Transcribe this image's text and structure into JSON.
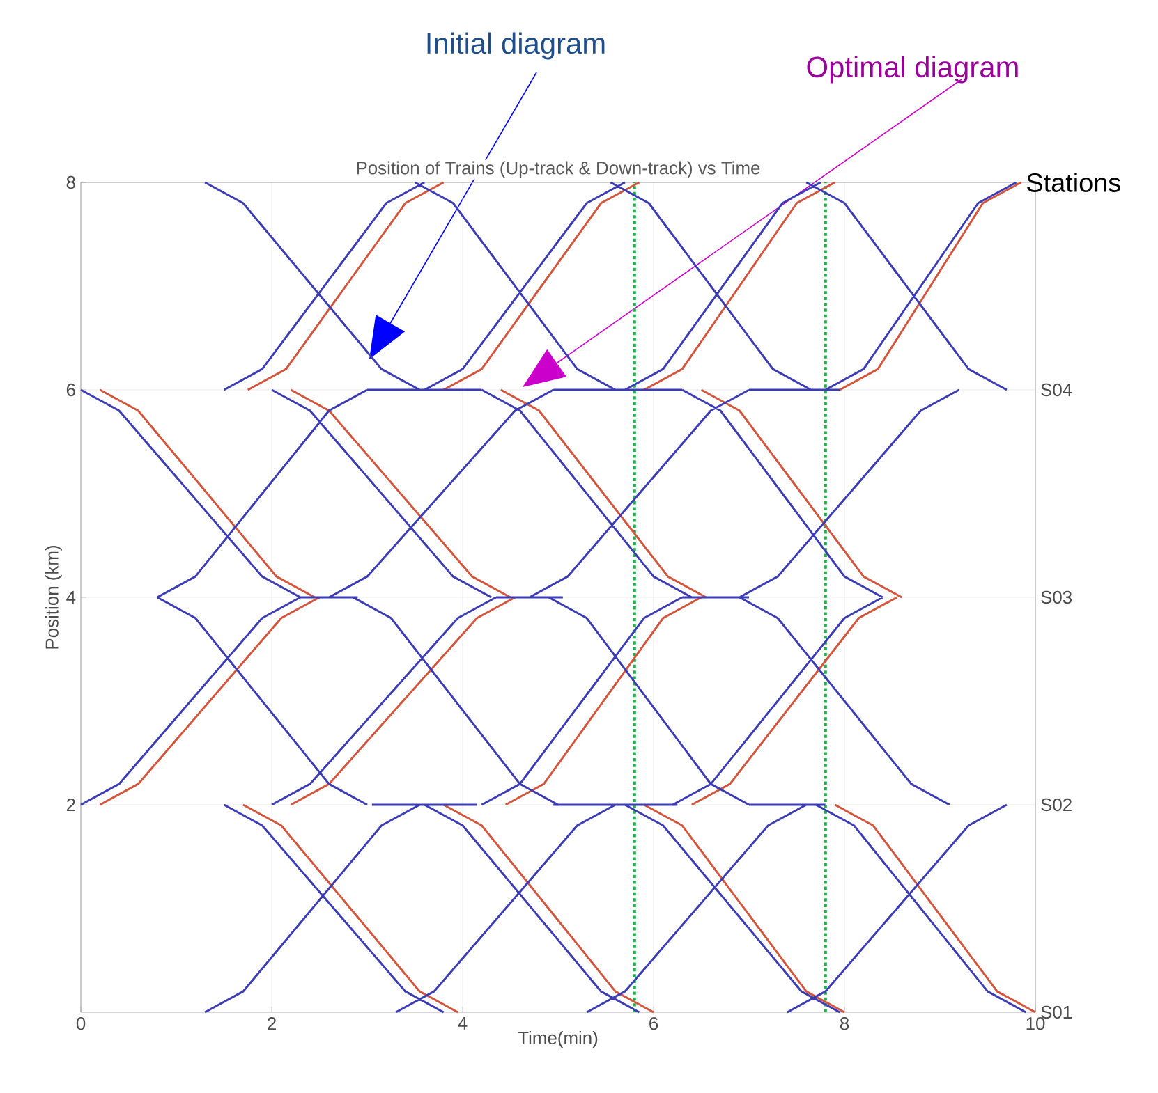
{
  "chart_data": {
    "type": "line",
    "title": "Position of Trains (Up-track & Down-track) vs Time",
    "xlabel": "Time(min)",
    "ylabel": "Position (km)",
    "annotations": [
      "Stations",
      "S01",
      "S02",
      "S03",
      "S04"
    ],
    "xlim": [
      0,
      10
    ],
    "ylim": [
      0,
      8
    ],
    "xticks": [
      0,
      2,
      4,
      6,
      8,
      10
    ],
    "yticks": [
      2,
      4,
      6,
      8
    ],
    "grid": true,
    "marker": "none",
    "line_style": "solid",
    "ref_lines": [
      {
        "axis": "x",
        "value": 5.8,
        "color": "#22b04a",
        "line_style": "dotted"
      },
      {
        "axis": "x",
        "value": 7.8,
        "color": "#22b04a",
        "line_style": "dotted"
      }
    ],
    "series": [
      {
        "name": "Initial diagram",
        "color": "#3c3cb4",
        "x": [
          1.3,
          1.7,
          3.15,
          3.55,
          null,
          3.5,
          3.9,
          5.2,
          5.6,
          null,
          5.55,
          5.95,
          7.25,
          7.65,
          null,
          7.6,
          8.0,
          9.3,
          9.7,
          null,
          1.5,
          1.9,
          3.2,
          3.6,
          null,
          3.6,
          4.0,
          5.3,
          5.7,
          null,
          5.7,
          6.1,
          7.35,
          7.75,
          null,
          7.8,
          8.2,
          9.4,
          9.8,
          null,
          0,
          0.4,
          1.9,
          2.3,
          null,
          2.0,
          2.4,
          3.9,
          4.3,
          null,
          4.2,
          4.6,
          6.0,
          6.4,
          null,
          6.3,
          6.7,
          8.0,
          8.4,
          null,
          0.8,
          1.2,
          2.6,
          3.0,
          null,
          2.6,
          3.0,
          4.55,
          4.95,
          null,
          4.7,
          5.1,
          6.6,
          7.0,
          null,
          6.9,
          7.3,
          8.8,
          9.2,
          null,
          0.8,
          1.2,
          2.6,
          3.0,
          null,
          2.85,
          3.25,
          4.6,
          5.0,
          null,
          4.9,
          5.3,
          6.6,
          7.0,
          null,
          6.9,
          7.3,
          8.7,
          9.1,
          null,
          0,
          0.4,
          1.9,
          2.3,
          null,
          2.0,
          2.4,
          3.95,
          4.35,
          null,
          4.2,
          4.6,
          5.9,
          6.3,
          null,
          6.2,
          6.6,
          8.0,
          8.4,
          null,
          1.5,
          1.9,
          3.4,
          3.8,
          null,
          3.6,
          4.0,
          5.45,
          5.85,
          null,
          5.7,
          6.1,
          7.55,
          7.95,
          null,
          7.7,
          8.1,
          9.5,
          9.9,
          null,
          1.3,
          1.7,
          3.15,
          3.55,
          null,
          3.3,
          3.7,
          5.2,
          5.6,
          null,
          5.3,
          5.7,
          7.2,
          7.6,
          null,
          7.4,
          7.8,
          9.3,
          9.7,
          null,
          3.0,
          4.2,
          null,
          4.95,
          6.3,
          null,
          7.0,
          7.95,
          null,
          2.3,
          2.9,
          null,
          4.35,
          5.05,
          null,
          6.3,
          7.0,
          null,
          3.05,
          4.15,
          null,
          4.95,
          6.25,
          null,
          7.0,
          7.8
        ],
        "values": [
          8,
          7.8,
          6.2,
          6,
          null,
          8,
          7.8,
          6.2,
          6,
          null,
          8,
          7.8,
          6.2,
          6,
          null,
          8,
          7.8,
          6.2,
          6,
          null,
          6,
          6.2,
          7.8,
          8,
          null,
          6,
          6.2,
          7.8,
          8,
          null,
          6,
          6.2,
          7.8,
          8,
          null,
          6,
          6.2,
          7.8,
          8,
          null,
          6,
          5.8,
          4.2,
          4,
          null,
          6,
          5.8,
          4.2,
          4,
          null,
          6,
          5.8,
          4.2,
          4,
          null,
          6,
          5.8,
          4.2,
          4,
          null,
          4,
          4.2,
          5.8,
          6,
          null,
          4,
          4.2,
          5.8,
          6,
          null,
          4,
          4.2,
          5.8,
          6,
          null,
          4,
          4.2,
          5.8,
          6,
          null,
          4,
          3.8,
          2.2,
          2,
          null,
          4,
          3.8,
          2.2,
          2,
          null,
          4,
          3.8,
          2.2,
          2,
          null,
          4,
          3.8,
          2.2,
          2,
          null,
          2,
          2.2,
          3.8,
          4,
          null,
          2,
          2.2,
          3.8,
          4,
          null,
          2,
          2.2,
          3.8,
          4,
          null,
          2,
          2.2,
          3.8,
          4,
          null,
          2,
          1.8,
          0.2,
          0,
          null,
          2,
          1.8,
          0.2,
          0,
          null,
          2,
          1.8,
          0.2,
          0,
          null,
          2,
          1.8,
          0.2,
          0,
          null,
          0,
          0.2,
          1.8,
          2,
          null,
          0,
          0.2,
          1.8,
          2,
          null,
          0,
          0.2,
          1.8,
          2,
          null,
          0,
          0.2,
          1.8,
          2,
          null,
          6,
          6,
          null,
          6,
          6,
          null,
          6,
          6,
          null,
          4,
          4,
          null,
          4,
          4,
          null,
          4,
          4,
          null,
          2,
          2,
          null,
          2,
          2,
          null,
          2,
          2
        ]
      },
      {
        "name": "Optimal diagram",
        "color": "#d2553c",
        "x": [
          1.75,
          2.15,
          3.4,
          3.8,
          null,
          3.8,
          4.2,
          5.45,
          5.85,
          null,
          5.9,
          6.3,
          7.5,
          7.9,
          null,
          7.95,
          8.35,
          9.45,
          9.85,
          null,
          0.2,
          0.6,
          2.05,
          2.45,
          null,
          2.2,
          2.6,
          4.1,
          4.5,
          null,
          4.4,
          4.8,
          6.15,
          6.55,
          null,
          6.5,
          6.9,
          8.2,
          8.6,
          null,
          0.2,
          0.6,
          2.1,
          2.5,
          null,
          2.2,
          2.6,
          4.15,
          4.55,
          null,
          4.45,
          4.85,
          6.1,
          6.5,
          null,
          6.4,
          6.8,
          8.15,
          8.55,
          null,
          1.7,
          2.1,
          3.55,
          3.95,
          null,
          3.8,
          4.2,
          5.6,
          6.0,
          null,
          5.9,
          6.3,
          7.6,
          8.0,
          null,
          7.9,
          8.3,
          9.6,
          10.0
        ],
        "values": [
          6,
          6.2,
          7.8,
          8,
          null,
          6,
          6.2,
          7.8,
          8,
          null,
          6,
          6.2,
          7.8,
          8,
          null,
          6,
          6.2,
          7.8,
          8,
          null,
          6,
          5.8,
          4.2,
          4,
          null,
          6,
          5.8,
          4.2,
          4,
          null,
          6,
          5.8,
          4.2,
          4,
          null,
          6,
          5.8,
          4.2,
          4,
          null,
          2,
          2.2,
          3.8,
          4,
          null,
          2,
          2.2,
          3.8,
          4,
          null,
          2,
          2.2,
          3.8,
          4,
          null,
          2,
          2.2,
          3.8,
          4,
          null,
          2,
          1.8,
          0.2,
          0,
          null,
          2,
          1.8,
          0.2,
          0,
          null,
          2,
          1.8,
          0.2,
          0,
          null,
          2,
          1.8,
          0.2,
          0
        ]
      }
    ]
  }
}
